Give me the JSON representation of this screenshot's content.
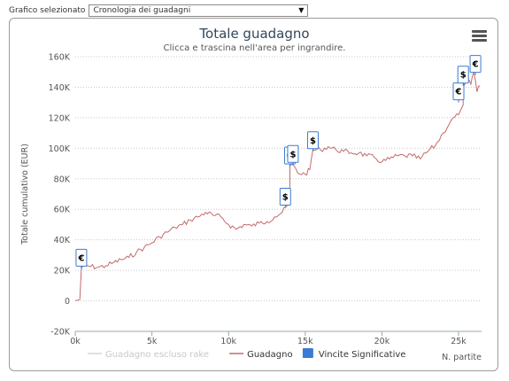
{
  "selector": {
    "label": "Grafico selezionato",
    "value": "Cronologia dei guadagni"
  },
  "menu_icon": "hamburger-menu-icon",
  "chart_data": {
    "type": "line",
    "title": "Totale guadagno",
    "subtitle": "Clicca e trascina nell'area per ingrandire.",
    "xlabel": "N. partite",
    "ylabel": "Totale cumulativo (EUR)",
    "xlim": [
      0,
      26500
    ],
    "ylim": [
      -20000,
      160000
    ],
    "x_ticks": [
      0,
      5000,
      10000,
      15000,
      20000,
      25000
    ],
    "x_tick_labels": [
      "0k",
      "5k",
      "10k",
      "15k",
      "20k",
      "25k"
    ],
    "y_ticks": [
      -20000,
      0,
      20000,
      40000,
      60000,
      80000,
      100000,
      120000,
      140000,
      160000
    ],
    "y_tick_labels": [
      "-20K",
      "0",
      "20K",
      "40K",
      "60K",
      "80K",
      "100K",
      "120K",
      "140K",
      "160K"
    ],
    "grid": "horizontal dotted",
    "legend_position": "bottom",
    "colors": {
      "guadagno": "#c46a6a",
      "escluso_rake": "#d6d6d6",
      "vincite": "#3a7bd5",
      "grid": "#c8c8c8"
    },
    "series": [
      {
        "name": "Guadagno",
        "x": [
          0,
          300,
          400,
          700,
          1000,
          1500,
          2000,
          2500,
          3000,
          3500,
          4000,
          4500,
          5000,
          5500,
          6000,
          6500,
          7000,
          7500,
          8000,
          8500,
          9000,
          9500,
          10000,
          10500,
          11000,
          11500,
          12000,
          12500,
          13000,
          13500,
          13800,
          14000,
          14300,
          14500,
          15000,
          15300,
          15500,
          16000,
          16500,
          17000,
          17500,
          18000,
          18500,
          19000,
          19500,
          20000,
          20500,
          21000,
          21500,
          22000,
          22500,
          23000,
          23500,
          24000,
          24500,
          25000,
          25300,
          25500,
          25800,
          26000,
          26200,
          26400
        ],
        "y": [
          0,
          1000,
          21000,
          23000,
          22500,
          22000,
          23000,
          25000,
          27000,
          28500,
          32000,
          35000,
          38000,
          42000,
          45000,
          48000,
          50000,
          53000,
          55000,
          58000,
          56000,
          55000,
          50000,
          47000,
          50000,
          49000,
          51000,
          52000,
          55000,
          58000,
          62000,
          89000,
          88000,
          84000,
          83000,
          86000,
          99000,
          99000,
          101000,
          99000,
          98000,
          97000,
          97000,
          95000,
          94000,
          91000,
          93000,
          95000,
          95000,
          95000,
          93000,
          98000,
          102000,
          110000,
          118000,
          122000,
          141000,
          145000,
          142000,
          150000,
          137000,
          141000
        ]
      },
      {
        "name": "Guadagno escluso rake",
        "x": [],
        "y": []
      }
    ],
    "flags": [
      {
        "symbol": "€",
        "x": 400,
        "y": 21000
      },
      {
        "symbol": "$",
        "x": 13700,
        "y": 61000
      },
      {
        "symbol": "€",
        "x": 14000,
        "y": 88000
      },
      {
        "symbol": "$",
        "x": 14200,
        "y": 89000
      },
      {
        "symbol": "$",
        "x": 15500,
        "y": 98000
      },
      {
        "symbol": "€",
        "x": 25000,
        "y": 130000
      },
      {
        "symbol": "$",
        "x": 25300,
        "y": 141000
      },
      {
        "symbol": "€",
        "x": 26100,
        "y": 148000
      }
    ],
    "legend": [
      {
        "label": "Guadagno escluso rake",
        "kind": "line",
        "color": "#d6d6d6",
        "text_color": "#c8c8c8"
      },
      {
        "label": "Guadagno",
        "kind": "line",
        "color": "#c46a6a",
        "text_color": "#333333"
      },
      {
        "label": "Vincite Significative",
        "kind": "box",
        "color": "#3a7bd5",
        "text_color": "#333333"
      }
    ]
  }
}
